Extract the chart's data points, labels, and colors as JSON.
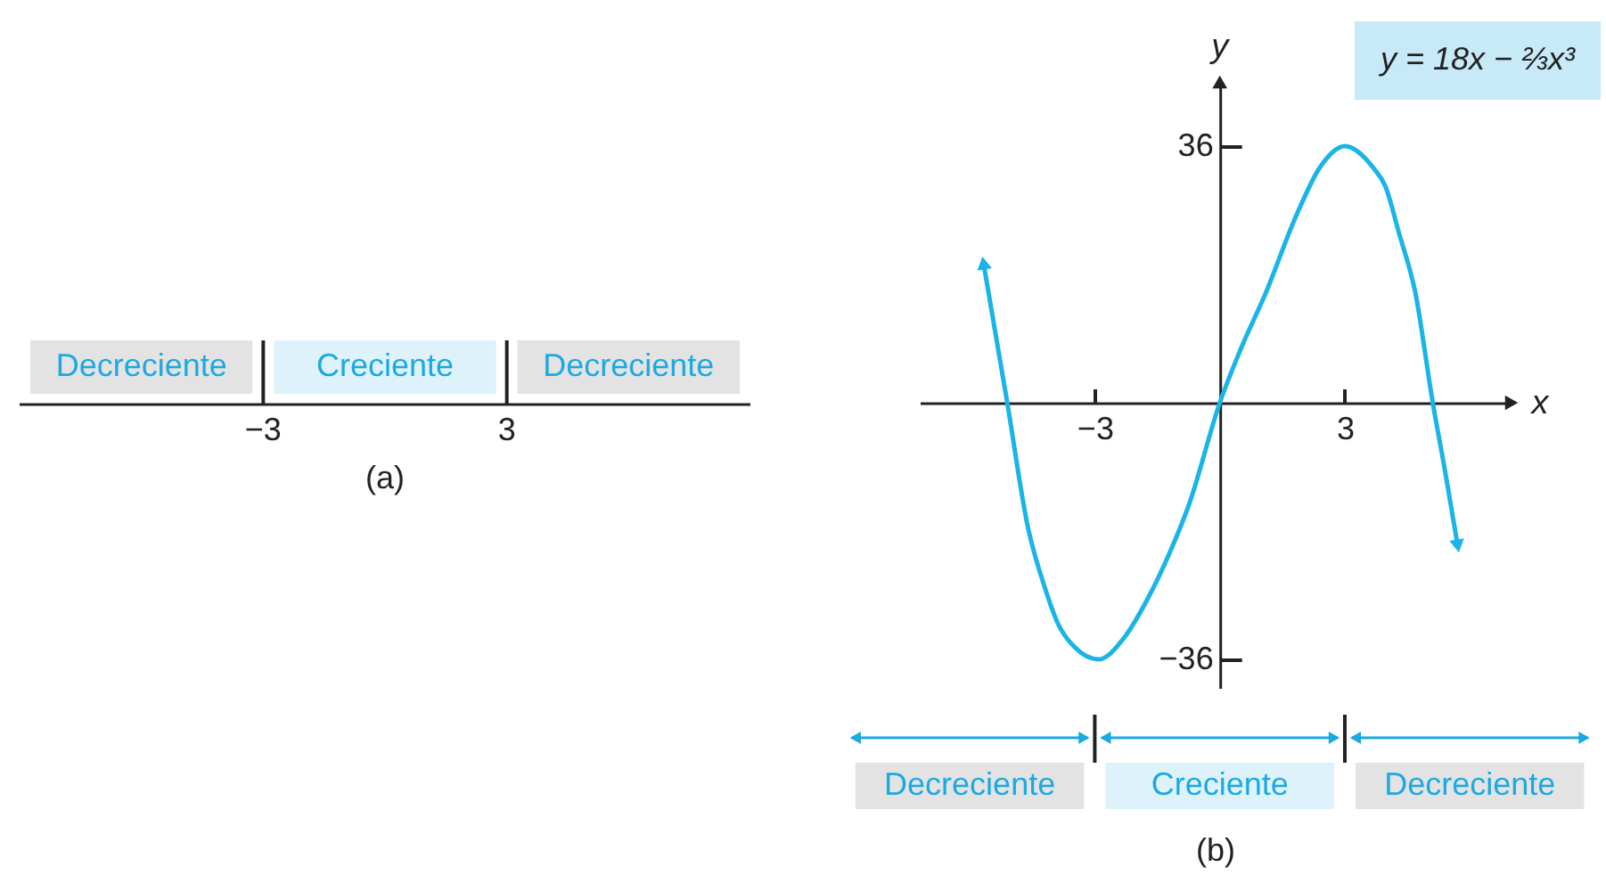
{
  "chart_data": [
    {
      "type": "other",
      "annotations": [
        "Decreciente",
        "Creciente",
        "Decreciente",
        "−3",
        "3",
        "(a)"
      ]
    },
    {
      "type": "line",
      "xlabel": "x",
      "ylabel": "y",
      "xlim": [
        -7.2,
        7
      ],
      "ylim": [
        -40,
        45
      ],
      "xticks": [
        {
          "value": -3,
          "label": "−3"
        },
        3
      ],
      "yticks": [
        36,
        {
          "value": -36,
          "label": "−36"
        }
      ],
      "x": [
        -5.67,
        -5.1,
        -4.6,
        -4.2,
        -3.89,
        -3.5,
        -2.91,
        -2.3,
        -1.74,
        -1.2,
        -0.74,
        0,
        0.5,
        1.11,
        1.83,
        2.4,
        3,
        3.69,
        3.97,
        4.3,
        4.69,
        5.11,
        5.4,
        5.71
      ],
      "series": [
        {
          "color": "#1ab4e8",
          "values": [
            19.6,
            0,
            -17.6,
            -25.9,
            -30.9,
            -34.2,
            -36,
            -33,
            -27.6,
            -21,
            -14.3,
            0,
            7.5,
            15.5,
            26.2,
            33,
            36,
            32.9,
            30.4,
            23.8,
            15.5,
            0,
            -9.4,
            -20.1
          ]
        }
      ],
      "annotations": [
        "y = 18x − ⅔x³",
        "Decreciente",
        "Creciente",
        "Decreciente",
        "(b)"
      ]
    }
  ]
}
